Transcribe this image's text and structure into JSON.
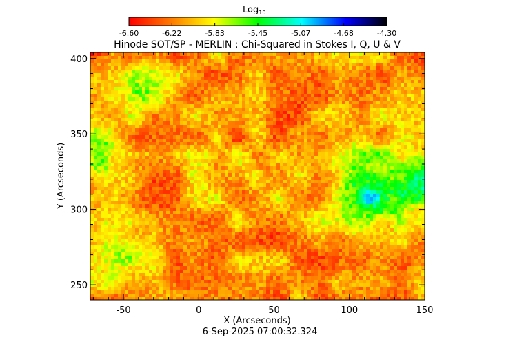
{
  "colorbar": {
    "label_main": "Log",
    "label_sub": "10",
    "ticks": [
      "-6.60",
      "-6.22",
      "-5.83",
      "-5.45",
      "-5.07",
      "-4.68",
      "-4.30"
    ],
    "range": [
      -6.6,
      -4.3
    ],
    "colors": [
      "#ff0000",
      "#ff7f00",
      "#ffff00",
      "#00ff00",
      "#00ffff",
      "#0000ff",
      "#000000"
    ]
  },
  "chart_data": {
    "type": "heatmap",
    "title": "Hinode SOT/SP - MERLIN : Chi-Squared in Stokes I, Q, U & V",
    "xlabel": "X (Arcseconds)",
    "ylabel": "Y (Arcseconds)",
    "xlim": [
      -72,
      150
    ],
    "ylim": [
      240,
      404
    ],
    "xticks": [
      -50,
      0,
      50,
      100,
      150
    ],
    "yticks": [
      250,
      300,
      350,
      400
    ],
    "value_range": [
      -6.6,
      -4.3
    ],
    "background_level": -6.15,
    "features": [
      {
        "region": "active region core (strongest)",
        "x": 117,
        "y": 308,
        "level": -4.75
      },
      {
        "region": "active region surroundings",
        "x": 112,
        "y": 310,
        "level": -5.5
      },
      {
        "region": "right edge patch",
        "x": 145,
        "y": 316,
        "level": -5.25
      },
      {
        "region": "left patch",
        "x": -68,
        "y": 339,
        "level": -5.45
      },
      {
        "region": "bright band",
        "x": 0,
        "y": 335,
        "level": -5.6
      },
      {
        "region": "upper-left patches",
        "x": -35,
        "y": 380,
        "level": -5.65
      },
      {
        "region": "lower-left patches",
        "x": -50,
        "y": 270,
        "level": -5.65
      }
    ],
    "footer": "6-Sep-2025 07:00:32.324"
  }
}
